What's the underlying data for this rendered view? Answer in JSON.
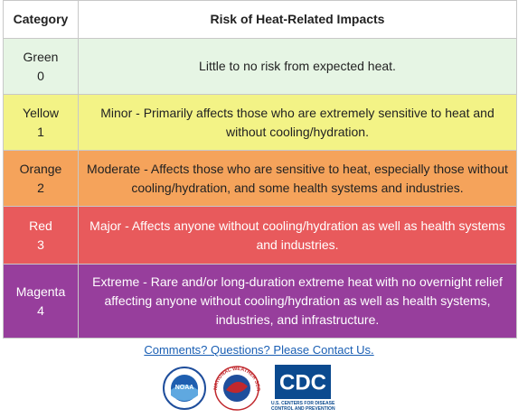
{
  "table": {
    "header": [
      "Category",
      "Risk of Heat-Related Impacts"
    ],
    "rows": [
      {
        "category": "Green",
        "level": "0",
        "description": "Little to no risk from expected heat."
      },
      {
        "category": "Yellow",
        "level": "1",
        "description": "Minor - Primarily affects those who are extremely sensitive to heat and without cooling/hydration."
      },
      {
        "category": "Orange",
        "level": "2",
        "description": "Moderate - Affects those who are sensitive to heat, especially those without cooling/hydration, and some health systems and industries."
      },
      {
        "category": "Red",
        "level": "3",
        "description": "Major - Affects anyone without cooling/hydration as well as health systems and industries."
      },
      {
        "category": "Magenta",
        "level": "4",
        "description": "Extreme - Rare and/or long-duration extreme heat with no overnight relief affecting anyone without cooling/hydration as well as health systems, industries, and infrastructure."
      }
    ]
  },
  "footer": {
    "link": "Comments? Questions? Please Contact Us.",
    "logos": {
      "noaa": "NOAA",
      "nws": "NATIONAL WEATHER SERVICE",
      "cdc": "CDC",
      "cdc_subtitle": "U.S. CENTERS FOR DISEASE CONTROL AND PREVENTION"
    }
  }
}
